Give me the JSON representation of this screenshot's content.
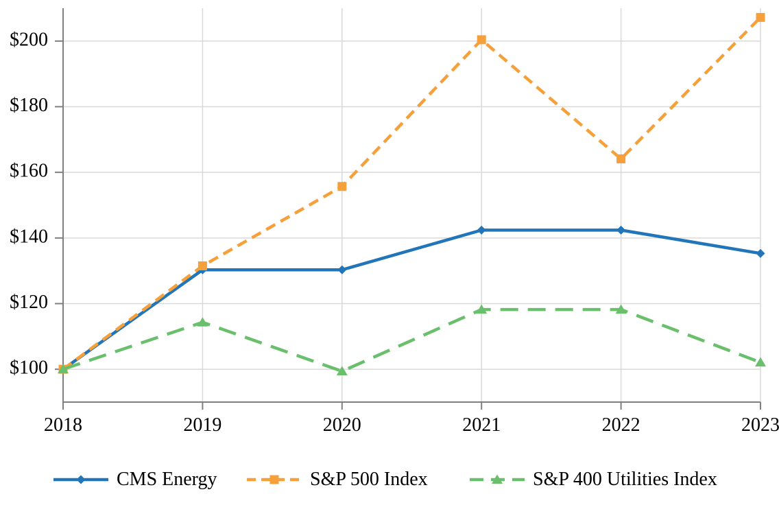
{
  "chart_data": {
    "type": "line",
    "title": "",
    "xlabel": "",
    "ylabel": "",
    "categories": [
      "2018",
      "2019",
      "2020",
      "2021",
      "2022",
      "2023"
    ],
    "series": [
      {
        "name": "CMS Energy",
        "color": "#2175b8",
        "marker": "diamond",
        "line_style": "solid",
        "values": [
          100,
          130.3,
          130.3,
          142.4,
          142.4,
          135.3
        ]
      },
      {
        "name": "S&P 500 Index",
        "color": "#f5a03a",
        "marker": "square",
        "line_style": "dashed",
        "values": [
          100,
          131.5,
          155.7,
          200.4,
          164.1,
          207.2
        ]
      },
      {
        "name": "S&P 400 Utilities Index",
        "color": "#6abf6d",
        "marker": "triangle",
        "line_style": "long-dashed",
        "values": [
          100,
          114.3,
          99.4,
          118.2,
          118.2,
          102.1
        ]
      }
    ],
    "y_tick_labels": [
      "$100",
      "$120",
      "$140",
      "$160",
      "$180",
      "$200"
    ],
    "y_tick_values": [
      100,
      120,
      140,
      160,
      180,
      200
    ],
    "ylim": [
      90,
      210
    ],
    "grid": true,
    "legend_position": "bottom",
    "colors": {
      "axis": "#7f7f7f",
      "gridline": "#d9d9d9",
      "text": "#000000",
      "background": "#ffffff"
    }
  }
}
